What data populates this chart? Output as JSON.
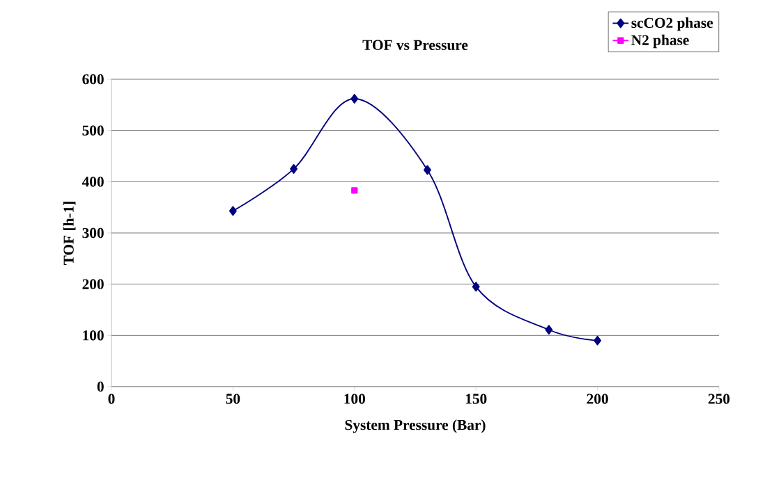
{
  "chart_data": {
    "type": "line",
    "title": "TOF vs Pressure",
    "xlabel": "System Pressure (Bar)",
    "ylabel": "TOF [h-1]",
    "xlim": [
      0,
      250
    ],
    "xticks": [
      0,
      50,
      100,
      150,
      200,
      250
    ],
    "ylim": [
      0,
      600
    ],
    "yticks": [
      0,
      100,
      200,
      300,
      400,
      500,
      600
    ],
    "grid": "y",
    "legend": "top right",
    "line_style": "solid",
    "series": [
      {
        "name": "scCO2 phase",
        "color": "#000080",
        "marker": "diamond",
        "x": [
          50,
          75,
          100,
          130,
          150,
          180,
          200
        ],
        "values": [
          343,
          425,
          562,
          423,
          195,
          111,
          90
        ]
      },
      {
        "name": "N2 phase",
        "color": "#ff00ff",
        "marker": "square",
        "x": [
          100
        ],
        "values": [
          383
        ]
      }
    ]
  }
}
